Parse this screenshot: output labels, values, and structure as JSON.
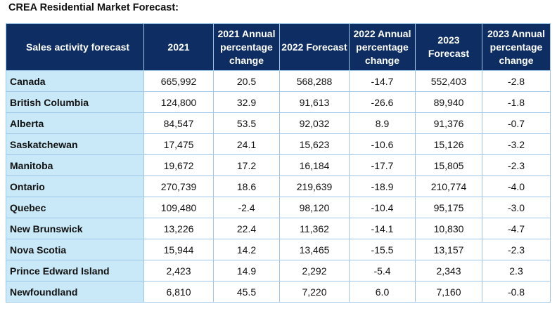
{
  "title": "CREA Residential Market Forecast:",
  "columns": [
    "Sales activity forecast",
    "2021",
    "2021 Annual percentage change",
    "2022 Forecast",
    "2022 Annual percentage change",
    "2023 Forecast",
    "2023 Annual percentage change"
  ],
  "rows": [
    [
      "Canada",
      "665,992",
      "20.5",
      "568,288",
      "-14.7",
      "552,403",
      "-2.8"
    ],
    [
      "British Columbia",
      "124,800",
      "32.9",
      "91,613",
      "-26.6",
      "89,940",
      "-1.8"
    ],
    [
      "Alberta",
      "84,547",
      "53.5",
      "92,032",
      "8.9",
      "91,376",
      "-0.7"
    ],
    [
      "Saskatchewan",
      "17,475",
      "24.1",
      "15,623",
      "-10.6",
      "15,126",
      "-3.2"
    ],
    [
      "Manitoba",
      "19,672",
      "17.2",
      "16,184",
      "-17.7",
      "15,805",
      "-2.3"
    ],
    [
      "Ontario",
      "270,739",
      "18.6",
      "219,639",
      "-18.9",
      "210,774",
      "-4.0"
    ],
    [
      "Quebec",
      "109,480",
      "-2.4",
      "98,120",
      "-10.4",
      "95,175",
      "-3.0"
    ],
    [
      "New Brunswick",
      "13,226",
      "22.4",
      "11,362",
      "-14.1",
      "10,830",
      "-4.7"
    ],
    [
      "Nova Scotia",
      "15,944",
      "14.2",
      "13,465",
      "-15.5",
      "13,157",
      "-2.3"
    ],
    [
      "Prince Edward Island",
      "2,423",
      "14.9",
      "2,292",
      "-5.4",
      "2,343",
      "2.3"
    ],
    [
      "Newfoundland",
      "6,810",
      "45.5",
      "7,220",
      "6.0",
      "7,160",
      "-0.8"
    ]
  ],
  "colors": {
    "header_bg": "#0e2e63",
    "header_text": "#ffffff",
    "region_bg": "#c9e9f8",
    "border": "#9ec6e6"
  }
}
